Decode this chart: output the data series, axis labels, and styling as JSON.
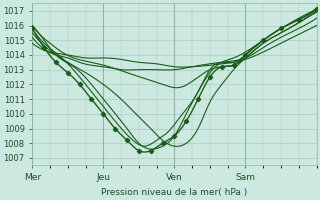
{
  "bg_color": "#cce8e0",
  "grid_color": "#aaccc0",
  "line_color": "#1a5c1a",
  "ylabel_text": "Pression niveau de la mer( hPa )",
  "xtick_labels": [
    "Mer",
    "Jeu",
    "Ven",
    "Sam"
  ],
  "ytick_vals": [
    1007,
    1008,
    1009,
    1010,
    1011,
    1012,
    1013,
    1014,
    1015,
    1016,
    1017
  ],
  "ylim": [
    1006.5,
    1017.5
  ],
  "xlim": [
    0,
    96
  ],
  "xtick_positions": [
    0,
    24,
    48,
    72
  ],
  "curves": [
    {
      "pts": [
        [
          0,
          1016.0
        ],
        [
          2,
          1015.5
        ],
        [
          6,
          1014.8
        ],
        [
          10,
          1014.2
        ],
        [
          14,
          1013.8
        ],
        [
          20,
          1013.5
        ],
        [
          26,
          1013.2
        ],
        [
          32,
          1012.8
        ],
        [
          38,
          1012.4
        ],
        [
          44,
          1012.0
        ],
        [
          50,
          1011.8
        ],
        [
          56,
          1012.5
        ],
        [
          60,
          1013.0
        ],
        [
          64,
          1013.2
        ],
        [
          68,
          1013.3
        ],
        [
          72,
          1013.8
        ],
        [
          78,
          1014.8
        ],
        [
          84,
          1015.5
        ],
        [
          90,
          1016.2
        ],
        [
          96,
          1017.0
        ]
      ],
      "marker": false
    },
    {
      "pts": [
        [
          0,
          1015.8
        ],
        [
          4,
          1014.5
        ],
        [
          8,
          1013.5
        ],
        [
          12,
          1012.8
        ],
        [
          16,
          1012.0
        ],
        [
          20,
          1011.0
        ],
        [
          24,
          1010.0
        ],
        [
          28,
          1009.0
        ],
        [
          32,
          1008.2
        ],
        [
          36,
          1007.5
        ],
        [
          40,
          1007.5
        ],
        [
          44,
          1008.0
        ],
        [
          48,
          1008.5
        ],
        [
          52,
          1009.5
        ],
        [
          56,
          1011.0
        ],
        [
          60,
          1012.5
        ],
        [
          64,
          1013.2
        ],
        [
          68,
          1013.3
        ],
        [
          72,
          1014.0
        ],
        [
          78,
          1015.0
        ],
        [
          84,
          1015.8
        ],
        [
          90,
          1016.4
        ],
        [
          96,
          1017.1
        ]
      ],
      "marker": true
    },
    {
      "pts": [
        [
          0,
          1015.5
        ],
        [
          6,
          1014.3
        ],
        [
          12,
          1013.5
        ],
        [
          18,
          1012.8
        ],
        [
          24,
          1012.0
        ],
        [
          30,
          1011.0
        ],
        [
          36,
          1009.8
        ],
        [
          40,
          1009.0
        ],
        [
          44,
          1008.2
        ],
        [
          48,
          1007.8
        ],
        [
          52,
          1008.0
        ],
        [
          56,
          1009.0
        ],
        [
          60,
          1010.8
        ],
        [
          64,
          1012.0
        ],
        [
          68,
          1013.0
        ],
        [
          72,
          1013.8
        ],
        [
          78,
          1014.8
        ],
        [
          84,
          1015.5
        ],
        [
          90,
          1016.2
        ],
        [
          96,
          1016.9
        ]
      ],
      "marker": false
    },
    {
      "pts": [
        [
          0,
          1015.2
        ],
        [
          4,
          1014.4
        ],
        [
          8,
          1014.0
        ],
        [
          12,
          1013.8
        ],
        [
          16,
          1013.5
        ],
        [
          20,
          1013.3
        ],
        [
          24,
          1013.2
        ],
        [
          30,
          1013.0
        ],
        [
          36,
          1013.0
        ],
        [
          42,
          1013.0
        ],
        [
          48,
          1013.0
        ],
        [
          54,
          1013.2
        ],
        [
          60,
          1013.4
        ],
        [
          64,
          1013.5
        ],
        [
          68,
          1013.6
        ],
        [
          72,
          1013.8
        ],
        [
          78,
          1014.5
        ],
        [
          84,
          1015.2
        ],
        [
          90,
          1015.8
        ],
        [
          96,
          1016.5
        ]
      ],
      "marker": false
    },
    {
      "pts": [
        [
          0,
          1014.8
        ],
        [
          6,
          1014.2
        ],
        [
          12,
          1014.0
        ],
        [
          18,
          1013.8
        ],
        [
          24,
          1013.8
        ],
        [
          30,
          1013.7
        ],
        [
          36,
          1013.5
        ],
        [
          42,
          1013.4
        ],
        [
          48,
          1013.2
        ],
        [
          54,
          1013.2
        ],
        [
          60,
          1013.3
        ],
        [
          64,
          1013.4
        ],
        [
          68,
          1013.5
        ],
        [
          72,
          1013.7
        ],
        [
          78,
          1014.2
        ],
        [
          84,
          1014.8
        ],
        [
          90,
          1015.4
        ],
        [
          96,
          1016.0
        ]
      ],
      "marker": false
    },
    {
      "pts": [
        [
          0,
          1016.0
        ],
        [
          4,
          1015.0
        ],
        [
          8,
          1014.0
        ],
        [
          14,
          1013.2
        ],
        [
          20,
          1012.0
        ],
        [
          26,
          1010.5
        ],
        [
          32,
          1009.0
        ],
        [
          36,
          1008.0
        ],
        [
          40,
          1007.6
        ],
        [
          44,
          1007.8
        ],
        [
          48,
          1008.5
        ],
        [
          52,
          1010.0
        ],
        [
          56,
          1011.5
        ],
        [
          60,
          1012.8
        ],
        [
          64,
          1013.5
        ],
        [
          68,
          1013.8
        ],
        [
          72,
          1014.2
        ],
        [
          78,
          1015.0
        ],
        [
          84,
          1015.8
        ],
        [
          90,
          1016.4
        ],
        [
          96,
          1017.2
        ]
      ],
      "marker": false
    },
    {
      "pts": [
        [
          0,
          1015.8
        ],
        [
          4,
          1014.8
        ],
        [
          10,
          1013.8
        ],
        [
          16,
          1012.5
        ],
        [
          22,
          1011.0
        ],
        [
          28,
          1009.5
        ],
        [
          34,
          1008.2
        ],
        [
          38,
          1007.8
        ],
        [
          42,
          1008.2
        ],
        [
          46,
          1008.8
        ],
        [
          50,
          1009.8
        ],
        [
          56,
          1011.5
        ],
        [
          60,
          1013.0
        ],
        [
          64,
          1013.5
        ],
        [
          68,
          1013.5
        ],
        [
          72,
          1014.0
        ],
        [
          78,
          1015.0
        ],
        [
          84,
          1015.8
        ],
        [
          90,
          1016.5
        ],
        [
          96,
          1017.1
        ]
      ],
      "marker": false
    }
  ]
}
